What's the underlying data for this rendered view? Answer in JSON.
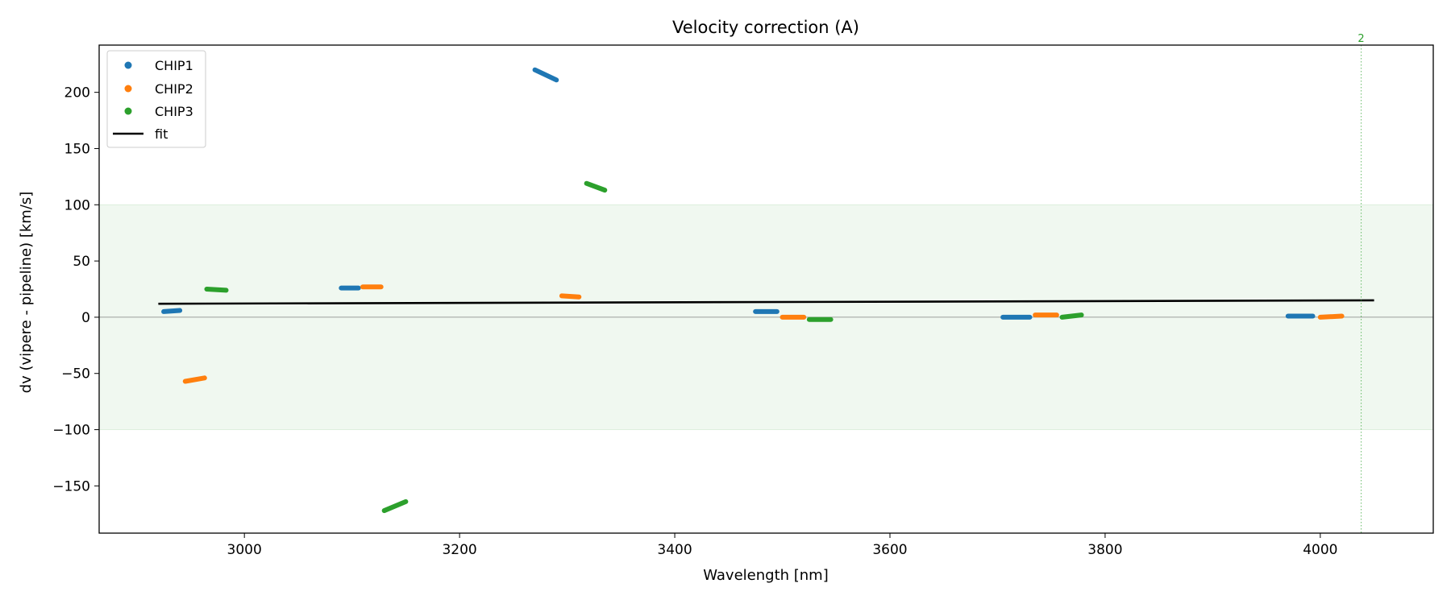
{
  "chart_data": {
    "type": "scatter",
    "title": "Velocity correction (A)",
    "xlabel": "Wavelength [nm]",
    "ylabel": "dv (vipere - pipeline) [km/s]",
    "xlim": [
      2865,
      4105
    ],
    "ylim": [
      -192,
      242
    ],
    "xticks": [
      3000,
      3200,
      3400,
      3600,
      3800,
      4000
    ],
    "yticks": [
      -150,
      -100,
      -50,
      0,
      50,
      100,
      150,
      200
    ],
    "tolerance_band": [
      -100,
      100
    ],
    "band_color": "#2ca02c",
    "zero_line": 0,
    "legend_position": "upper-left",
    "vline": {
      "x": 4038,
      "label": "2",
      "color": "#2ca02c"
    },
    "series": [
      {
        "name": "CHIP1",
        "color": "#1f77b4",
        "segments": [
          [
            [
              2925,
              5
            ],
            [
              2940,
              6
            ]
          ],
          [
            [
              3090,
              26
            ],
            [
              3106,
              26
            ]
          ],
          [
            [
              3270,
              220
            ],
            [
              3290,
              211
            ]
          ],
          [
            [
              3475,
              5
            ],
            [
              3495,
              5
            ]
          ],
          [
            [
              3705,
              0
            ],
            [
              3730,
              0
            ]
          ],
          [
            [
              3970,
              1
            ],
            [
              3993,
              1
            ]
          ]
        ]
      },
      {
        "name": "CHIP2",
        "color": "#ff7f0e",
        "segments": [
          [
            [
              2945,
              -57
            ],
            [
              2963,
              -54
            ]
          ],
          [
            [
              3110,
              27
            ],
            [
              3127,
              27
            ]
          ],
          [
            [
              3295,
              19
            ],
            [
              3311,
              18
            ]
          ],
          [
            [
              3500,
              0
            ],
            [
              3520,
              0
            ]
          ],
          [
            [
              3735,
              2
            ],
            [
              3755,
              2
            ]
          ],
          [
            [
              4000,
              0
            ],
            [
              4020,
              1
            ]
          ]
        ]
      },
      {
        "name": "CHIP3",
        "color": "#2ca02c",
        "segments": [
          [
            [
              2965,
              25
            ],
            [
              2983,
              24
            ]
          ],
          [
            [
              3130,
              -172
            ],
            [
              3150,
              -164
            ]
          ],
          [
            [
              3318,
              119
            ],
            [
              3335,
              113
            ]
          ],
          [
            [
              3525,
              -2
            ],
            [
              3545,
              -2
            ]
          ],
          [
            [
              3760,
              0
            ],
            [
              3778,
              2
            ]
          ]
        ]
      }
    ],
    "fit": {
      "name": "fit",
      "color": "#000000",
      "x": [
        2920,
        4050
      ],
      "y": [
        12,
        15
      ]
    }
  }
}
